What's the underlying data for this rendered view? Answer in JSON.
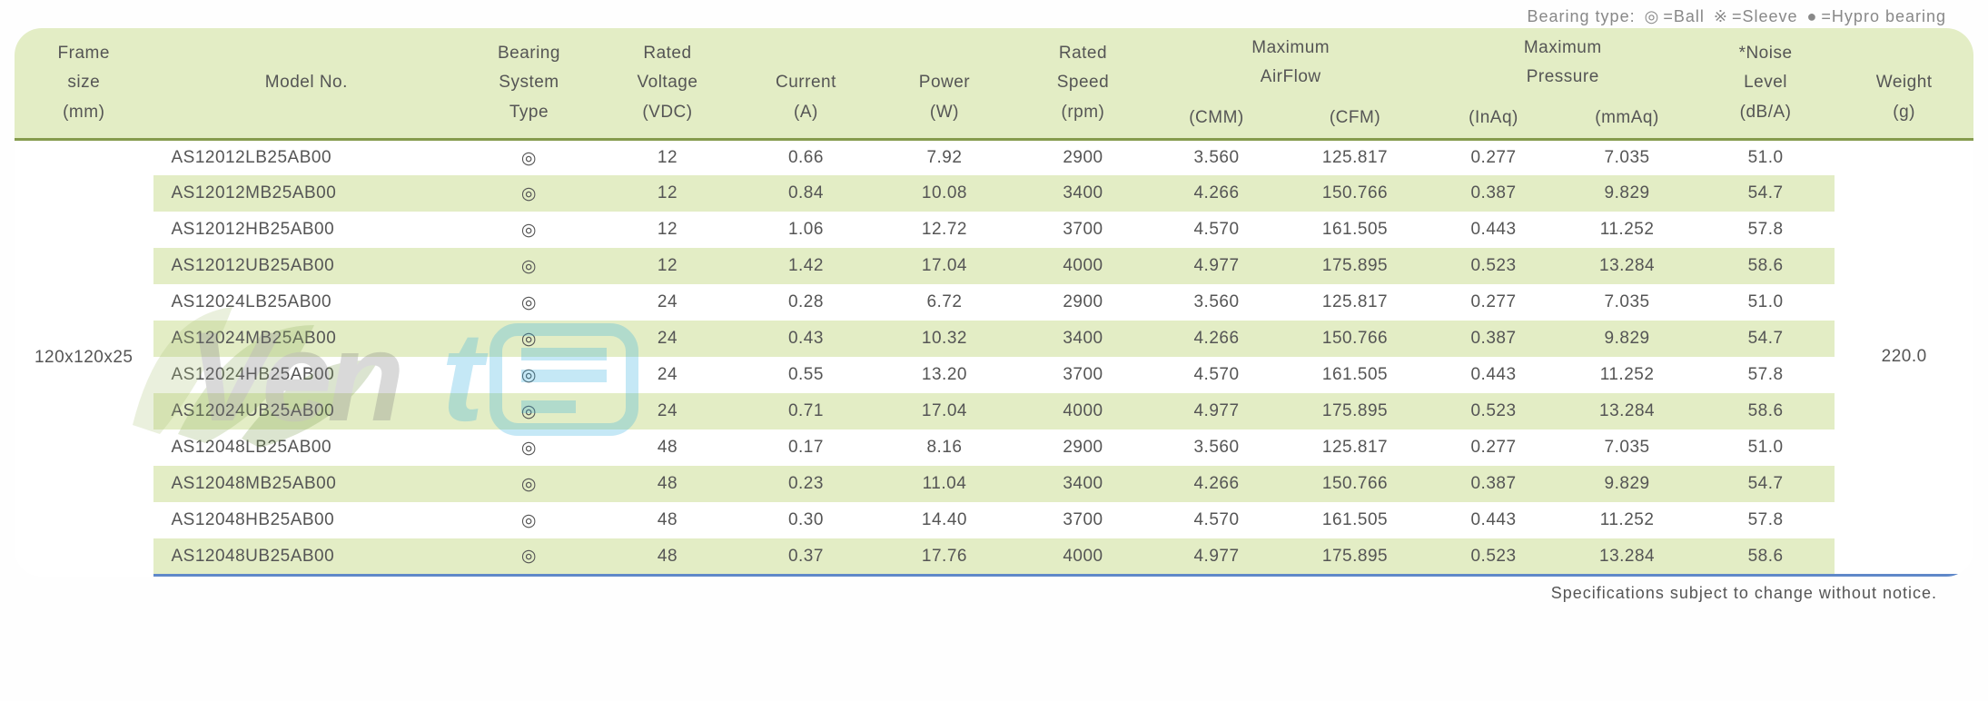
{
  "legend": {
    "prefix": "Bearing type:",
    "items": [
      {
        "symbol": "◎",
        "label": "=Ball"
      },
      {
        "symbol": "※",
        "label": "=Sleeve"
      },
      {
        "symbol": "●",
        "label": "=Hypro bearing"
      }
    ]
  },
  "headers": {
    "frame_size": [
      "Frame",
      "size",
      "(mm)"
    ],
    "model_no": [
      "Model No."
    ],
    "bearing": [
      "Bearing",
      "System",
      "Type"
    ],
    "voltage": [
      "Rated",
      "Voltage",
      "(VDC)"
    ],
    "current": [
      "",
      "Current",
      "(A)"
    ],
    "power": [
      "",
      "Power",
      "(W)"
    ],
    "speed": [
      "Rated",
      "Speed",
      "(rpm)"
    ],
    "airflow_group": "Maximum\nAirFlow",
    "airflow_cmm": "(CMM)",
    "airflow_cfm": "(CFM)",
    "pressure_group": "Maximum\nPressure",
    "pressure_inaq": "(InAq)",
    "pressure_mmaq": "(mmAq)",
    "noise": [
      "*Noise",
      "Level",
      "(dB/A)"
    ],
    "weight": [
      "",
      "Weight",
      "(g)"
    ]
  },
  "frame_size_value": "120x120x25",
  "weight_value": "220.0",
  "bearing_symbol": "◎",
  "rows": [
    {
      "model": "AS12012LB25AB00",
      "voltage": "12",
      "current": "0.66",
      "power": "7.92",
      "speed": "2900",
      "cmm": "3.560",
      "cfm": "125.817",
      "inaq": "0.277",
      "mmaq": "7.035",
      "noise": "51.0"
    },
    {
      "model": "AS12012MB25AB00",
      "voltage": "12",
      "current": "0.84",
      "power": "10.08",
      "speed": "3400",
      "cmm": "4.266",
      "cfm": "150.766",
      "inaq": "0.387",
      "mmaq": "9.829",
      "noise": "54.7"
    },
    {
      "model": "AS12012HB25AB00",
      "voltage": "12",
      "current": "1.06",
      "power": "12.72",
      "speed": "3700",
      "cmm": "4.570",
      "cfm": "161.505",
      "inaq": "0.443",
      "mmaq": "11.252",
      "noise": "57.8"
    },
    {
      "model": "AS12012UB25AB00",
      "voltage": "12",
      "current": "1.42",
      "power": "17.04",
      "speed": "4000",
      "cmm": "4.977",
      "cfm": "175.895",
      "inaq": "0.523",
      "mmaq": "13.284",
      "noise": "58.6"
    },
    {
      "model": "AS12024LB25AB00",
      "voltage": "24",
      "current": "0.28",
      "power": "6.72",
      "speed": "2900",
      "cmm": "3.560",
      "cfm": "125.817",
      "inaq": "0.277",
      "mmaq": "7.035",
      "noise": "51.0"
    },
    {
      "model": "AS12024MB25AB00",
      "voltage": "24",
      "current": "0.43",
      "power": "10.32",
      "speed": "3400",
      "cmm": "4.266",
      "cfm": "150.766",
      "inaq": "0.387",
      "mmaq": "9.829",
      "noise": "54.7"
    },
    {
      "model": "AS12024HB25AB00",
      "voltage": "24",
      "current": "0.55",
      "power": "13.20",
      "speed": "3700",
      "cmm": "4.570",
      "cfm": "161.505",
      "inaq": "0.443",
      "mmaq": "11.252",
      "noise": "57.8"
    },
    {
      "model": "AS12024UB25AB00",
      "voltage": "24",
      "current": "0.71",
      "power": "17.04",
      "speed": "4000",
      "cmm": "4.977",
      "cfm": "175.895",
      "inaq": "0.523",
      "mmaq": "13.284",
      "noise": "58.6"
    },
    {
      "model": "AS12048LB25AB00",
      "voltage": "48",
      "current": "0.17",
      "power": "8.16",
      "speed": "2900",
      "cmm": "3.560",
      "cfm": "125.817",
      "inaq": "0.277",
      "mmaq": "7.035",
      "noise": "51.0"
    },
    {
      "model": "AS12048MB25AB00",
      "voltage": "48",
      "current": "0.23",
      "power": "11.04",
      "speed": "3400",
      "cmm": "4.266",
      "cfm": "150.766",
      "inaq": "0.387",
      "mmaq": "9.829",
      "noise": "54.7"
    },
    {
      "model": "AS12048HB25AB00",
      "voltage": "48",
      "current": "0.30",
      "power": "14.40",
      "speed": "3700",
      "cmm": "4.570",
      "cfm": "161.505",
      "inaq": "0.443",
      "mmaq": "11.252",
      "noise": "57.8"
    },
    {
      "model": "AS12048UB25AB00",
      "voltage": "48",
      "current": "0.37",
      "power": "17.76",
      "speed": "4000",
      "cmm": "4.977",
      "cfm": "175.895",
      "inaq": "0.523",
      "mmaq": "13.284",
      "noise": "58.6"
    }
  ],
  "footer_text": "Specifications subject to change without notice.",
  "colors": {
    "header_bg": "#e3edc5",
    "stripe_bg": "#e3edc5",
    "top_border": "#859b4d",
    "bottom_border": "#5f88c9",
    "text": "#555555",
    "legend_text": "#888888"
  },
  "column_widths_pct": [
    7.0,
    15.5,
    7.0,
    7.0,
    7.0,
    7.0,
    7.0,
    6.5,
    7.5,
    6.5,
    7.0,
    7.0,
    7.0
  ]
}
